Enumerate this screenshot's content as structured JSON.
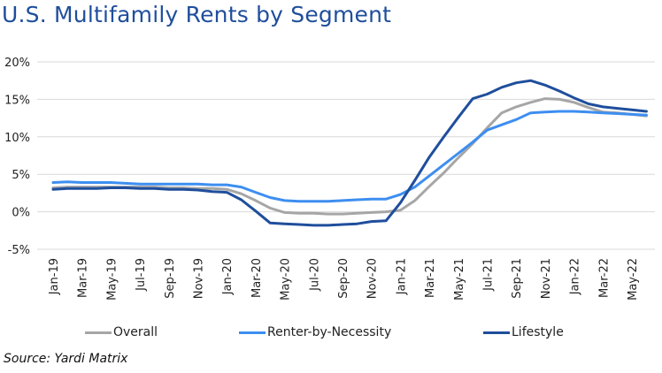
{
  "chart_data": {
    "type": "line",
    "title": "U.S. Multifamily Rents by Segment",
    "source": "Source: Yardi Matrix",
    "xlabel": "",
    "ylabel": "",
    "ylim": [
      -5,
      20
    ],
    "y_ticks": [
      "20%",
      "15%",
      "10%",
      "5%",
      "0%",
      "-5%"
    ],
    "grid": true,
    "legend_position": "bottom",
    "categories": [
      "Jan-19",
      "Feb-19",
      "Mar-19",
      "Apr-19",
      "May-19",
      "Jun-19",
      "Jul-19",
      "Aug-19",
      "Sep-19",
      "Oct-19",
      "Nov-19",
      "Dec-19",
      "Jan-20",
      "Feb-20",
      "Mar-20",
      "Apr-20",
      "May-20",
      "Jun-20",
      "Jul-20",
      "Aug-20",
      "Sep-20",
      "Oct-20",
      "Nov-20",
      "Dec-20",
      "Jan-21",
      "Feb-21",
      "Mar-21",
      "Apr-21",
      "May-21",
      "Jun-21",
      "Jul-21",
      "Aug-21",
      "Sep-21",
      "Oct-21",
      "Nov-21",
      "Dec-21",
      "Jan-22",
      "Feb-22",
      "Mar-22",
      "Apr-22",
      "May-22",
      "Jun-22"
    ],
    "x_tick_labels": [
      "Jan-19",
      "Mar-19",
      "May-19",
      "Jul-19",
      "Sep-19",
      "Nov-19",
      "Jan-20",
      "Mar-20",
      "May-20",
      "Jul-20",
      "Sep-20",
      "Nov-20",
      "Jan-21",
      "Mar-21",
      "May-21",
      "Jul-21",
      "Sep-21",
      "Nov-21",
      "Jan-22",
      "Mar-22",
      "May-22"
    ],
    "series": [
      {
        "name": "Overall",
        "color": "#a6a6a6",
        "values": [
          3.2,
          3.3,
          3.3,
          3.3,
          3.3,
          3.3,
          3.3,
          3.3,
          3.2,
          3.2,
          3.1,
          3.1,
          3.0,
          2.4,
          1.5,
          0.5,
          -0.1,
          -0.2,
          -0.2,
          -0.3,
          -0.3,
          -0.2,
          -0.1,
          0.0,
          0.2,
          1.5,
          3.4,
          5.2,
          7.2,
          9.1,
          11.2,
          13.2,
          14.0,
          14.6,
          15.1,
          15.0,
          14.6,
          13.9,
          13.3,
          13.2,
          13.0,
          12.8
        ]
      },
      {
        "name": "Renter-by-Necessity",
        "color": "#3d8ef0",
        "values": [
          3.9,
          4.0,
          3.9,
          3.9,
          3.9,
          3.8,
          3.7,
          3.7,
          3.7,
          3.7,
          3.7,
          3.6,
          3.6,
          3.3,
          2.6,
          1.9,
          1.5,
          1.4,
          1.4,
          1.4,
          1.5,
          1.6,
          1.7,
          1.7,
          2.3,
          3.3,
          4.8,
          6.3,
          7.8,
          9.3,
          10.9,
          11.6,
          12.3,
          13.2,
          13.3,
          13.4,
          13.4,
          13.3,
          13.2,
          13.1,
          13.0,
          12.9
        ]
      },
      {
        "name": "Lifestyle",
        "color": "#1f4e9c",
        "values": [
          3.0,
          3.1,
          3.1,
          3.1,
          3.2,
          3.2,
          3.1,
          3.1,
          3.0,
          3.0,
          2.9,
          2.7,
          2.6,
          1.6,
          0.1,
          -1.5,
          -1.6,
          -1.7,
          -1.8,
          -1.8,
          -1.7,
          -1.6,
          -1.3,
          -1.2,
          1.2,
          4.2,
          7.3,
          10.0,
          12.6,
          15.1,
          15.7,
          16.6,
          17.2,
          17.5,
          16.9,
          16.1,
          15.2,
          14.4,
          14.0,
          13.8,
          13.6,
          13.4
        ]
      }
    ]
  }
}
